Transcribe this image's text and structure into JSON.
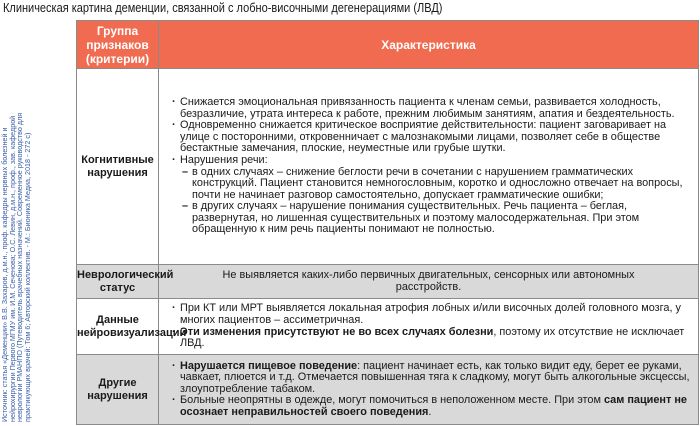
{
  "title": "Клиническая картина деменции, связанной с лобно-височными дегенерациями (ЛВД)",
  "source": "Источник: статья «Деменции» В.В. Захаров, д.м.н., проф. кафедры нервных болезней и нейрохирургии Первого МГМУ им. И.М. Сеченова; О.С. Левин, д.м.н., проф., зав. кафедрой неврологии РМАНПО (Путеводитель врачебных назначений. Современное руководство для практикующих врачей: Том 6; Авторский коллектив. - М.: Бионика Медиа, 2018 - 272 с)",
  "colors": {
    "header": "#f06b50",
    "gray_row": "#d9d9d9"
  },
  "table": {
    "headers": [
      "Группа признаков (критерии)",
      "Характеристика"
    ],
    "rows": [
      {
        "group": "Когнитивные нарушения",
        "items": [
          "Снижается эмоциональная привязанность пациента к членам семьи, развивается холодность, безразличие, утрата интереса к работе, прежним любимым занятиям, апатия и бездеятельность.",
          "Одновременно снижается критическое восприятие действительности: пациент заговаривает на улице с посторонними, откровенничает с малознакомыми лицами, позволяет себе в обществе бестактные замечания, плоские, неуместные или грубые шутки.",
          "Нарушения речи:"
        ],
        "subitems": [
          "в одних случаях – снижение беглости речи в сочетании с нарушением грамматических конструкций. Пациент становится немногословным, коротко и односложно отвечает на вопросы, почти не начинает разговор самостоятельно, допускает грамматические ошибки;",
          "в других случаях – нарушение понимания существительных. Речь пациента – беглая, развернутая, но лишенная существительных и поэтому малосодержательная. При этом обращенную к ним речь пациенты понимают не полностью."
        ]
      },
      {
        "group": "Неврологический статус",
        "text": "Не выявляется каких-либо первичных двигательных, сенсорных или автономных расстройств."
      },
      {
        "group": "Данные нейровизуализации",
        "item1": "При КТ или МРТ выявляется локальная атрофия лобных и/или височных долей головного мозга, у многих пациентов – ассиметричная.",
        "item2_bold": "Эти изменения присутствуют не во всех случаях болезни",
        "item2_rest": ", поэтому их отсутствие не исключает ЛВД."
      },
      {
        "group": "Другие нарушения",
        "item1_bold": "Нарушается пищевое поведение",
        "item1_rest": ": пациент начинает есть, как только видит еду, берет ее руками, чавкает, плюется и т.д. Отмечается повышенная тяга к сладкому, могут быть алкогольные эксцессы, злоупотребление табаком.",
        "item2_start": "Больные неопрятны в одежде, могут помочиться в неположенном месте. При этом ",
        "item2_bold": "сам пациент не осознает неправильностей своего поведения",
        "item2_end": "."
      }
    ]
  }
}
